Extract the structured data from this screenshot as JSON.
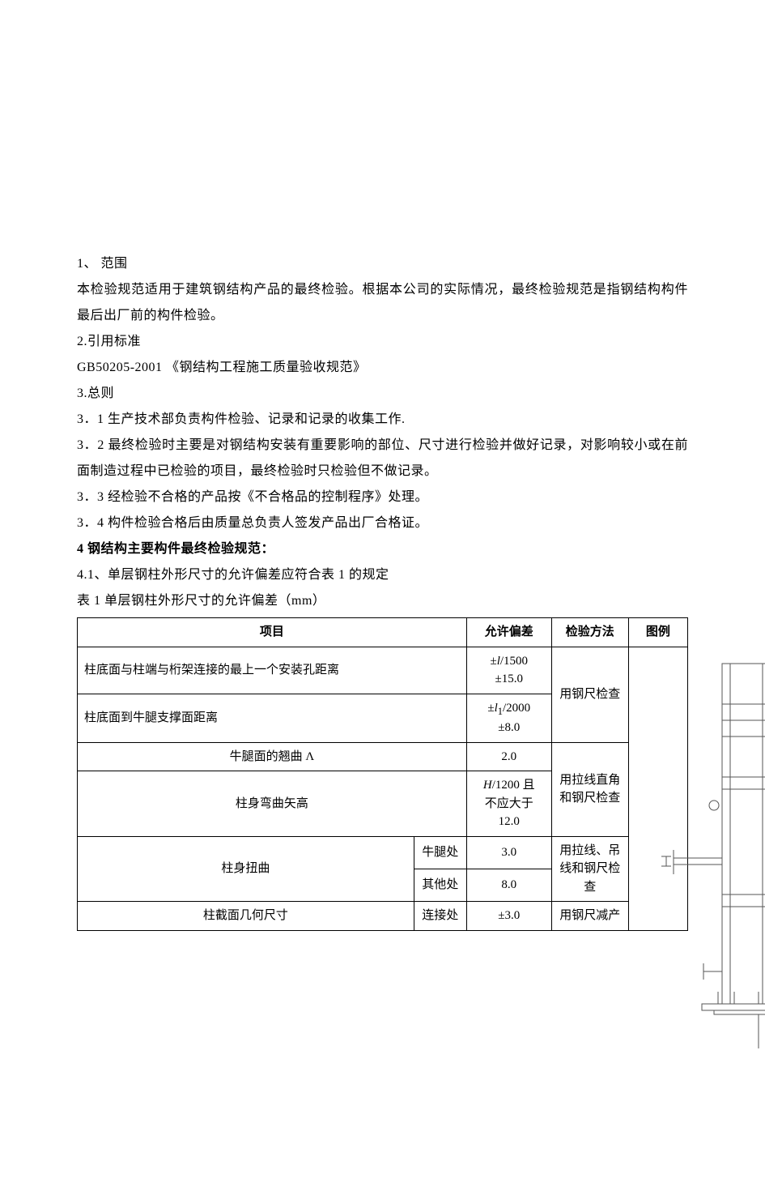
{
  "sections": {
    "s1_title": "1、   范围",
    "s1_p1": "本检验规范适用于建筑钢结构产品的最终检验。根据本公司的实际情况，最终检验规范是指钢结构构件最后出厂前的构件检验。",
    "s2_title": "2.引用标准",
    "s2_p1": "GB50205-2001   《钢结构工程施工质量验收规范》",
    "s3_title": "3.总则",
    "s3_1": "3．1 生产技术部负责构件检验、记录和记录的收集工作.",
    "s3_2": " 3．2 最终检验时主要是对钢结构安装有重要影响的部位、尺寸进行检验并做好记录，对影响较小或在前面制造过程中已检验的项目，最终检验时只检验但不做记录。",
    "s3_3": "3．3 经检验不合格的产品按《不合格品的控制程序》处理。",
    "s3_4": "3．4 构件检验合格后由质量总负责人签发产品出厂合格证。",
    "s4_title": "4 钢结构主要构件最终检验规范：",
    "s4_1": "4.1、单层钢柱外形尺寸的允许偏差应符合表 1 的规定",
    "table_caption": "表 1 单层钢柱外形尺寸的允许偏差（mm）"
  },
  "table": {
    "headers": {
      "item": "项目",
      "tolerance": "允许偏差",
      "method": "检验方法",
      "diagram": "图例"
    },
    "rows": [
      {
        "item": "柱底面与柱端与桁架连接的最上一个安装孔距离",
        "tolerance_html": "±<span class='italic'>l</span>/1500<br>±15.0",
        "method": "用钢尺检查"
      },
      {
        "item": "柱底面到牛腿支撑面距离",
        "tolerance_html": "±<span class='italic'>l</span><sub>1</sub>/2000<br>±8.0",
        "method": ""
      },
      {
        "item": "牛腿面的翘曲 Λ",
        "tolerance_html": "2.0",
        "method": "用拉线直角和钢尺检查"
      },
      {
        "item": "柱身弯曲矢高",
        "tolerance_html": "<span class='italic'>H</span>/1200 且<br>不应大于<br>12.0",
        "method": ""
      },
      {
        "item_group": "柱身扭曲",
        "sub": "牛腿处",
        "tolerance_html": "3.0",
        "method": "用拉线、吊线和钢尺检查"
      },
      {
        "item_group": "",
        "sub": "其他处",
        "tolerance_html": "8.0",
        "method": ""
      },
      {
        "item_group": "柱截面几何尺寸",
        "sub": "连接处",
        "tolerance_html": "±3.0",
        "method": "用钢尺减产"
      }
    ]
  },
  "styling": {
    "background_color": "#ffffff",
    "text_color": "#000000",
    "border_color": "#000000",
    "font_family": "SimSun",
    "body_fontsize": 16,
    "table_fontsize": 15,
    "diagram_stroke": "#555555",
    "diagram_stroke_width": 1
  }
}
